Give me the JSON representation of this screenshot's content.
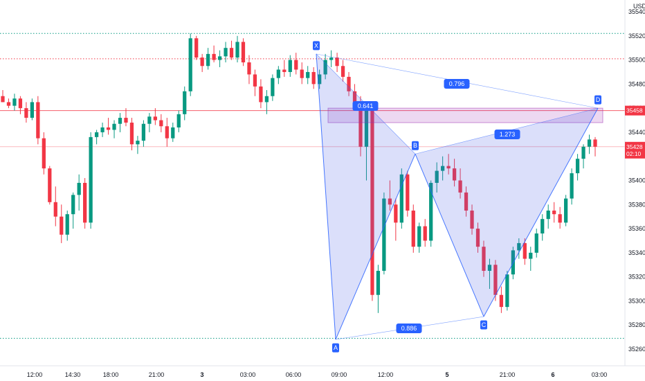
{
  "chart_data": {
    "type": "candlestick",
    "currency": "USD",
    "ylim": [
      35250,
      35550
    ],
    "y_ticks": [
      35540,
      35520,
      35500,
      35480,
      35460,
      35440,
      35420,
      35400,
      35380,
      35360,
      35340,
      35320,
      35300,
      35280,
      35260
    ],
    "x_ticks": [
      "12:00",
      "14:30",
      "18:00",
      "21:00",
      "3",
      "03:00",
      "06:00",
      "09:00",
      "12:00",
      "5",
      "21:00",
      "6",
      "03:00"
    ],
    "price_badges": [
      {
        "value": "35458",
        "color": "#f23645"
      },
      {
        "value": "35428",
        "sub": "02:10",
        "color": "#f23645"
      }
    ],
    "horizontal_lines": [
      {
        "value": 35522,
        "color": "#089981",
        "style": "dotted"
      },
      {
        "value": 35501,
        "color": "#f23645",
        "style": "dotted"
      },
      {
        "value": 35458,
        "color": "#f23645",
        "style": "solid"
      },
      {
        "value": 35428,
        "color": "#f23645",
        "style": "solid-faint"
      },
      {
        "value": 35269,
        "color": "#089981",
        "style": "dotted"
      }
    ],
    "harmonic_pattern": {
      "points": [
        {
          "label": "X",
          "value": 35505
        },
        {
          "label": "A",
          "value": 35268
        },
        {
          "label": "B",
          "value": 35422
        },
        {
          "label": "C",
          "value": 35287
        },
        {
          "label": "D",
          "value": 35460
        }
      ],
      "ratios": [
        "0.641",
        "0.796",
        "1.273",
        "0.886"
      ],
      "fill": "#4a5ee8",
      "line": "#2962ff"
    },
    "zone": {
      "from": 35460,
      "to": 35448,
      "color": "#9c27b0"
    },
    "candles": [
      [
        35470,
        35475,
        35465,
        35465
      ],
      [
        35465,
        35468,
        35460,
        35462
      ],
      [
        35462,
        35472,
        35458,
        35468
      ],
      [
        35468,
        35470,
        35455,
        35460
      ],
      [
        35460,
        35465,
        35448,
        35452
      ],
      [
        35452,
        35468,
        35450,
        35465
      ],
      [
        35465,
        35470,
        35430,
        35435
      ],
      [
        35435,
        35440,
        35405,
        35410
      ],
      [
        35410,
        35412,
        35380,
        35382
      ],
      [
        35382,
        35395,
        35362,
        35370
      ],
      [
        35370,
        35380,
        35348,
        35355
      ],
      [
        35355,
        35375,
        35350,
        35372
      ],
      [
        35372,
        35390,
        35360,
        35388
      ],
      [
        35388,
        35405,
        35375,
        35398
      ],
      [
        35398,
        35402,
        35360,
        35365
      ],
      [
        35365,
        35440,
        35360,
        35436
      ],
      [
        35436,
        35442,
        35430,
        35440
      ],
      [
        35440,
        35448,
        35436,
        35444
      ],
      [
        35444,
        35452,
        35438,
        35442
      ],
      [
        35442,
        35450,
        35435,
        35447
      ],
      [
        35447,
        35456,
        35440,
        35452
      ],
      [
        35452,
        35460,
        35445,
        35448
      ],
      [
        35448,
        35452,
        35425,
        35430
      ],
      [
        35430,
        35437,
        35422,
        35433
      ],
      [
        35433,
        35450,
        35428,
        35447
      ],
      [
        35447,
        35456,
        35440,
        35453
      ],
      [
        35453,
        35460,
        35446,
        35450
      ],
      [
        35450,
        35455,
        35440,
        35445
      ],
      [
        35445,
        35452,
        35428,
        35435
      ],
      [
        35435,
        35448,
        35432,
        35444
      ],
      [
        35444,
        35458,
        35440,
        35455
      ],
      [
        35455,
        35478,
        35450,
        35474
      ],
      [
        35474,
        35522,
        35470,
        35518
      ],
      [
        35518,
        35520,
        35500,
        35502
      ],
      [
        35502,
        35505,
        35490,
        35495
      ],
      [
        35495,
        35510,
        35492,
        35505
      ],
      [
        35505,
        35512,
        35498,
        35500
      ],
      [
        35500,
        35508,
        35494,
        35503
      ],
      [
        35503,
        35515,
        35498,
        35510
      ],
      [
        35510,
        35516,
        35500,
        35502
      ],
      [
        35502,
        35520,
        35498,
        35515
      ],
      [
        35515,
        35518,
        35495,
        35498
      ],
      [
        35498,
        35504,
        35480,
        35488
      ],
      [
        35488,
        35492,
        35470,
        35478
      ],
      [
        35478,
        35484,
        35460,
        35465
      ],
      [
        35465,
        35475,
        35455,
        35470
      ],
      [
        35470,
        35488,
        35466,
        35485
      ],
      [
        35485,
        35495,
        35480,
        35492
      ],
      [
        35492,
        35500,
        35486,
        35490
      ],
      [
        35490,
        35504,
        35486,
        35500
      ],
      [
        35500,
        35506,
        35488,
        35492
      ],
      [
        35492,
        35498,
        35480,
        35485
      ],
      [
        35485,
        35495,
        35480,
        35490
      ],
      [
        35490,
        35494,
        35476,
        35480
      ],
      [
        35480,
        35492,
        35476,
        35488
      ],
      [
        35488,
        35505,
        35484,
        35500
      ],
      [
        35500,
        35508,
        35494,
        35502
      ],
      [
        35502,
        35506,
        35490,
        35495
      ],
      [
        35495,
        35500,
        35482,
        35486
      ],
      [
        35486,
        35490,
        35470,
        35474
      ],
      [
        35474,
        35480,
        35460,
        35465
      ],
      [
        35465,
        35470,
        35420,
        35428
      ],
      [
        35428,
        35465,
        35400,
        35460
      ],
      [
        35460,
        35462,
        35300,
        35305
      ],
      [
        35305,
        35330,
        35290,
        35325
      ],
      [
        35325,
        35390,
        35322,
        35385
      ],
      [
        35385,
        35400,
        35375,
        35380
      ],
      [
        35380,
        35385,
        35350,
        35365
      ],
      [
        35365,
        35410,
        35360,
        35405
      ],
      [
        35405,
        35408,
        35370,
        35375
      ],
      [
        35375,
        35380,
        35340,
        35345
      ],
      [
        35345,
        35365,
        35340,
        35362
      ],
      [
        35362,
        35368,
        35345,
        35350
      ],
      [
        35350,
        35400,
        35345,
        35398
      ],
      [
        35398,
        35415,
        35390,
        35408
      ],
      [
        35408,
        35420,
        35400,
        35412
      ],
      [
        35412,
        35422,
        35405,
        35410
      ],
      [
        35410,
        35418,
        35395,
        35400
      ],
      [
        35400,
        35410,
        35385,
        35390
      ],
      [
        35390,
        35395,
        35370,
        35375
      ],
      [
        35375,
        35380,
        35355,
        35360
      ],
      [
        35360,
        35365,
        35340,
        35345
      ],
      [
        35345,
        35350,
        35320,
        35325
      ],
      [
        35325,
        35335,
        35310,
        35330
      ],
      [
        35330,
        35334,
        35300,
        35305
      ],
      [
        35305,
        35312,
        35290,
        35295
      ],
      [
        35295,
        35325,
        35292,
        35322
      ],
      [
        35322,
        35345,
        35318,
        35342
      ],
      [
        35342,
        35352,
        35335,
        35348
      ],
      [
        35348,
        35352,
        35330,
        35335
      ],
      [
        35335,
        35345,
        35325,
        35340
      ],
      [
        35340,
        35360,
        35336,
        35356
      ],
      [
        35356,
        35372,
        35350,
        35368
      ],
      [
        35368,
        35380,
        35360,
        35375
      ],
      [
        35375,
        35382,
        35365,
        35372
      ],
      [
        35372,
        35378,
        35360,
        35365
      ],
      [
        35365,
        35388,
        35362,
        35385
      ],
      [
        35385,
        35410,
        35380,
        35406
      ],
      [
        35406,
        35422,
        35400,
        35418
      ],
      [
        35418,
        35430,
        35410,
        35428
      ],
      [
        35428,
        35438,
        35422,
        35434
      ],
      [
        35434,
        35436,
        35420,
        35428
      ]
    ]
  }
}
